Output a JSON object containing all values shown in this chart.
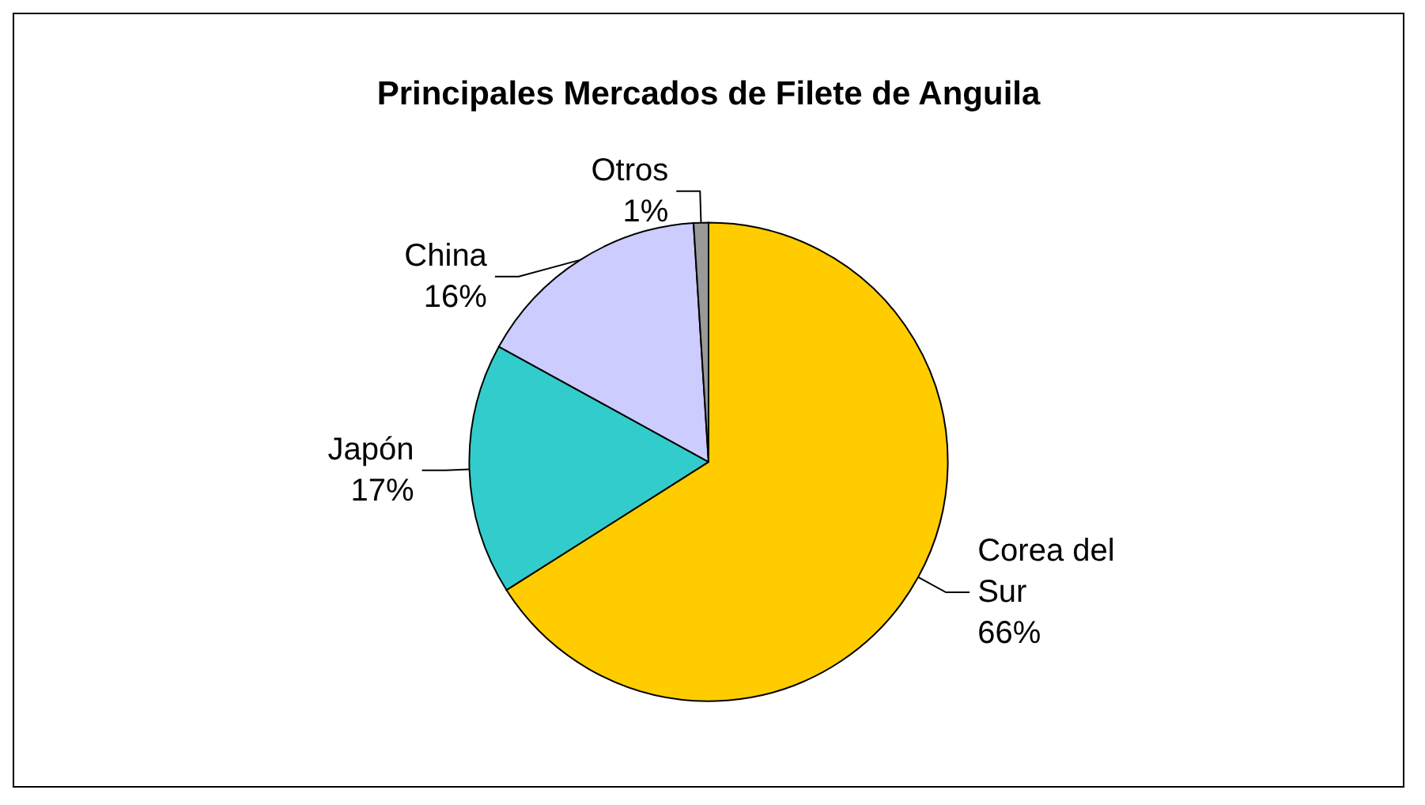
{
  "chart_data": {
    "type": "pie",
    "title": "Principales Mercados de Filete de Anguila",
    "categories": [
      "Corea del Sur",
      "Japón",
      "China",
      "Otros"
    ],
    "values": [
      66,
      17,
      16,
      1
    ],
    "value_labels": [
      "66%",
      "17%",
      "16%",
      "1%"
    ],
    "colors": [
      "#ffcc00",
      "#33cccc",
      "#ccccff",
      "#999999"
    ]
  }
}
